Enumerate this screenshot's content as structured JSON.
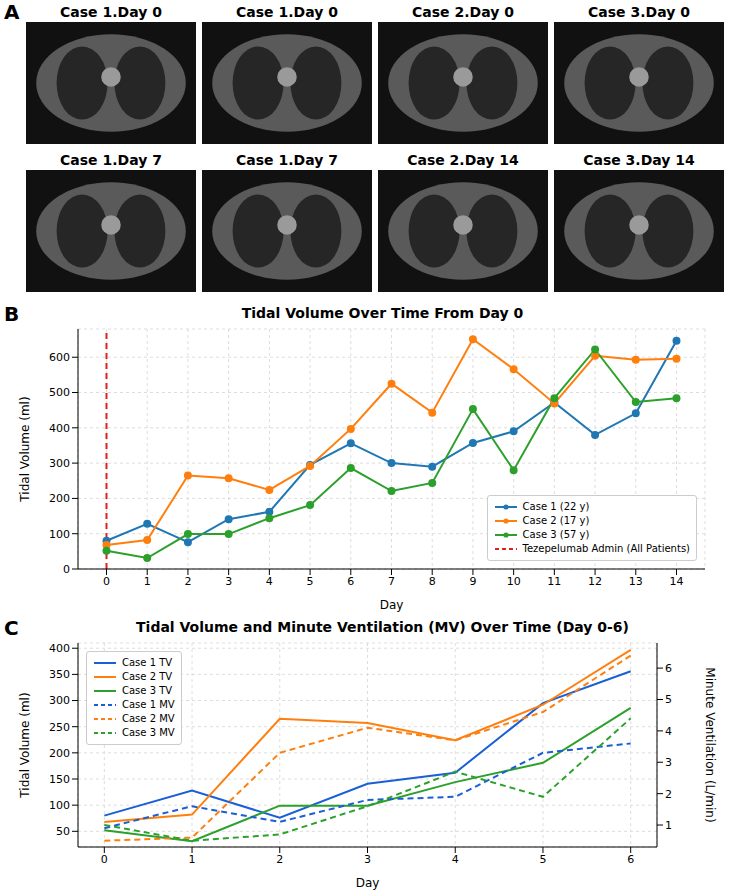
{
  "panel_labels": [
    "A",
    "B",
    "C"
  ],
  "images": [
    {
      "caption": "Case 1.Day 0"
    },
    {
      "caption": "Case 1.Day 0"
    },
    {
      "caption": "Case 2.Day 0"
    },
    {
      "caption": "Case 3.Day 0"
    },
    {
      "caption": "Case 1.Day 7"
    },
    {
      "caption": "Case 1.Day 7"
    },
    {
      "caption": "Case 2.Day 14"
    },
    {
      "caption": "Case 3.Day 14"
    }
  ],
  "chart_data": [
    {
      "type": "line",
      "title": "Tidal Volume Over Time From Day 0",
      "x_label": "Day",
      "y_label": "Tidal Volume (ml)",
      "x": [
        0,
        1,
        2,
        3,
        4,
        5,
        6,
        7,
        8,
        9,
        10,
        11,
        12,
        13,
        14
      ],
      "xlim": [
        -0.7,
        14.7
      ],
      "xticks": [
        0,
        1,
        2,
        3,
        4,
        5,
        6,
        7,
        8,
        9,
        10,
        11,
        12,
        13,
        14
      ],
      "ylim": [
        0,
        680
      ],
      "yticks": [
        0,
        100,
        200,
        300,
        400,
        500,
        600
      ],
      "grid": true,
      "legend": "lower right",
      "marker": "circle",
      "series": [
        {
          "name": "Case 1 (22 y)",
          "color": "#1f77b4",
          "values": [
            80,
            128,
            76,
            141,
            162,
            295,
            356,
            300,
            290,
            357,
            390,
            472,
            380,
            441,
            647
          ]
        },
        {
          "name": "Case 2 (17 y)",
          "color": "#ff7f0e",
          "values": [
            68,
            82,
            265,
            257,
            224,
            292,
            397,
            525,
            443,
            651,
            566,
            469,
            604,
            593,
            596
          ]
        },
        {
          "name": "Case 3 (57 y)",
          "color": "#2ca02c",
          "values": [
            52,
            31,
            99,
            99,
            144,
            181,
            286,
            221,
            244,
            453,
            280,
            484,
            622,
            473,
            484
          ]
        }
      ],
      "reference_lines": [
        {
          "name": "Tezepelumab Admin (All Patients)",
          "x": 0,
          "color": "#e0211d",
          "line_style": "dashed"
        }
      ]
    },
    {
      "type": "line",
      "title": "Tidal Volume and Minute Ventilation (MV) Over Time (Day 0-6)",
      "x_label": "Day",
      "y_label": "Tidal Volume (ml)",
      "y2_label": "Minute Ventilation (L/min)",
      "x": [
        0,
        1,
        2,
        3,
        4,
        5,
        6
      ],
      "xlim": [
        -0.3,
        6.3
      ],
      "xticks": [
        0,
        1,
        2,
        3,
        4,
        5,
        6
      ],
      "ylim": [
        20,
        410
      ],
      "yticks": [
        50,
        100,
        150,
        200,
        250,
        300,
        350,
        400
      ],
      "y2lim": [
        0.3,
        6.8
      ],
      "y2ticks": [
        1,
        2,
        3,
        4,
        5,
        6
      ],
      "grid": true,
      "legend": "upper left",
      "series": [
        {
          "name": "Case 1 TV",
          "color": "#1a5fd6",
          "line_style": "solid",
          "values": [
            80,
            128,
            76,
            141,
            162,
            295,
            356
          ]
        },
        {
          "name": "Case 2 TV",
          "color": "#ff7f0e",
          "line_style": "solid",
          "values": [
            68,
            82,
            265,
            257,
            224,
            292,
            397
          ]
        },
        {
          "name": "Case 3 TV",
          "color": "#2ca02c",
          "line_style": "solid",
          "values": [
            52,
            31,
            99,
            99,
            144,
            181,
            286
          ]
        },
        {
          "name": "Case 1 MV",
          "color": "#1a5fd6",
          "line_style": "dashed",
          "axis": "y2",
          "values": [
            0.9,
            1.6,
            1.1,
            1.8,
            1.9,
            3.3,
            3.6
          ]
        },
        {
          "name": "Case 2 MV",
          "color": "#ff7f0e",
          "line_style": "dashed",
          "axis": "y2",
          "values": [
            0.5,
            0.6,
            3.3,
            4.1,
            3.7,
            4.6,
            6.4
          ]
        },
        {
          "name": "Case 3 MV",
          "color": "#2ca02c",
          "line_style": "dashed",
          "axis": "y2",
          "values": [
            1.0,
            0.5,
            0.7,
            1.6,
            2.7,
            1.9,
            4.4
          ]
        }
      ]
    }
  ]
}
